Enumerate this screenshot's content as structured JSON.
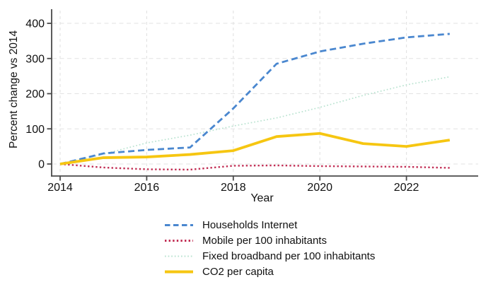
{
  "chart_data": {
    "type": "line",
    "title": "",
    "xlabel": "Year",
    "ylabel": "Percent change vs 2014",
    "x": [
      2014,
      2015,
      2016,
      2017,
      2018,
      2019,
      2020,
      2021,
      2022,
      2023
    ],
    "x_tick_labels": [
      2014,
      2016,
      2018,
      2020,
      2022
    ],
    "y_tick_labels": [
      0,
      100,
      200,
      300,
      400
    ],
    "xlim": [
      2013.8,
      2023.6
    ],
    "ylim": [
      -35,
      435
    ],
    "grid": {
      "horizontal": true,
      "vertical": true,
      "style": "dashed",
      "color": "#e2e2e2"
    },
    "axis_color": "#4a4a4a",
    "text_color": "#111111",
    "legend_position": "bottom",
    "series": [
      {
        "name": "Households Internet",
        "color": "#4a87cf",
        "line_style": "dashed",
        "line_width": 2.8,
        "values": [
          0,
          30,
          40,
          47,
          158,
          285,
          320,
          342,
          360,
          370
        ]
      },
      {
        "name": "Mobile per 100 inhabitants",
        "color": "#c22f55",
        "line_style": "dotted",
        "line_width": 2.4,
        "values": [
          0,
          -10,
          -15,
          -16,
          -5,
          -4,
          -6,
          -7,
          -8,
          -11
        ]
      },
      {
        "name": "Fixed broadband per 100 inhabitants",
        "color": "#b9e3d0",
        "line_style": "fine-dotted",
        "line_width": 1.7,
        "values": [
          0,
          28,
          60,
          82,
          108,
          131,
          161,
          195,
          225,
          248
        ]
      },
      {
        "name": "CO2 per capita",
        "color": "#f6c611",
        "line_style": "solid",
        "line_width": 3.8,
        "values": [
          0,
          18,
          20,
          27,
          38,
          78,
          87,
          58,
          50,
          68
        ]
      }
    ]
  }
}
